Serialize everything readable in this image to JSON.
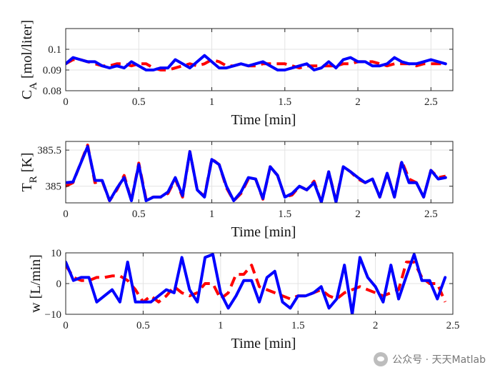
{
  "watermark": {
    "text": "公众号 · 天天Matlab",
    "icon": "wechat-icon"
  },
  "colors": {
    "actual": "#0000ff",
    "reference": "#ff0000",
    "axis": "#262626",
    "grid": "#e3e3e3"
  },
  "chart_data": [
    {
      "type": "line",
      "xlabel": "Time [min]",
      "ylabel": "C",
      "ylabel_subscript": "A",
      "ylabel_suffix": " [mol/liter]",
      "xlim": [
        0,
        2.65
      ],
      "ylim": [
        0.08,
        0.11
      ],
      "xticks": [
        0,
        0.5,
        1,
        1.5,
        2,
        2.5
      ],
      "xtick_labels": [
        "0",
        "0.5",
        "1",
        "1.5",
        "2",
        "2.5"
      ],
      "yticks": [
        0.08,
        0.09,
        0.1
      ],
      "ytick_labels": [
        "0.08",
        "0.09",
        "0.1"
      ],
      "grid": true,
      "series": [
        {
          "style": "dashed",
          "color": "#ff0000",
          "x": [
            0,
            0.05,
            0.1,
            0.15,
            0.2,
            0.25,
            0.3,
            0.35,
            0.4,
            0.45,
            0.5,
            0.55,
            0.6,
            0.65,
            0.7,
            0.75,
            0.8,
            0.85,
            0.9,
            0.95,
            1.0,
            1.05,
            1.1,
            1.15,
            1.2,
            1.25,
            1.3,
            1.35,
            1.4,
            1.45,
            1.5,
            1.55,
            1.6,
            1.65,
            1.7,
            1.75,
            1.8,
            1.85,
            1.9,
            1.95,
            2.0,
            2.05,
            2.1,
            2.15,
            2.2,
            2.25,
            2.3,
            2.35,
            2.4,
            2.45,
            2.5,
            2.55,
            2.6
          ],
          "y": [
            0.093,
            0.095,
            0.095,
            0.094,
            0.093,
            0.092,
            0.092,
            0.093,
            0.093,
            0.092,
            0.093,
            0.093,
            0.091,
            0.09,
            0.09,
            0.091,
            0.092,
            0.093,
            0.092,
            0.093,
            0.095,
            0.094,
            0.092,
            0.092,
            0.093,
            0.092,
            0.092,
            0.093,
            0.093,
            0.093,
            0.093,
            0.092,
            0.091,
            0.092,
            0.092,
            0.092,
            0.092,
            0.092,
            0.093,
            0.093,
            0.094,
            0.094,
            0.094,
            0.093,
            0.092,
            0.093,
            0.093,
            0.093,
            0.092,
            0.093,
            0.093,
            0.093,
            0.093
          ]
        },
        {
          "style": "solid",
          "color": "#0000ff",
          "x": [
            0,
            0.05,
            0.1,
            0.15,
            0.2,
            0.25,
            0.3,
            0.35,
            0.4,
            0.45,
            0.5,
            0.55,
            0.6,
            0.65,
            0.7,
            0.75,
            0.8,
            0.85,
            0.9,
            0.95,
            1.0,
            1.05,
            1.1,
            1.15,
            1.2,
            1.25,
            1.3,
            1.35,
            1.4,
            1.45,
            1.5,
            1.55,
            1.6,
            1.65,
            1.7,
            1.75,
            1.8,
            1.85,
            1.9,
            1.95,
            2.0,
            2.05,
            2.1,
            2.15,
            2.2,
            2.25,
            2.3,
            2.35,
            2.4,
            2.45,
            2.5,
            2.55,
            2.6
          ],
          "y": [
            0.093,
            0.096,
            0.095,
            0.094,
            0.094,
            0.092,
            0.091,
            0.092,
            0.091,
            0.094,
            0.092,
            0.09,
            0.09,
            0.091,
            0.091,
            0.095,
            0.093,
            0.091,
            0.094,
            0.097,
            0.094,
            0.091,
            0.091,
            0.092,
            0.093,
            0.092,
            0.093,
            0.094,
            0.092,
            0.09,
            0.09,
            0.091,
            0.092,
            0.093,
            0.09,
            0.091,
            0.094,
            0.091,
            0.095,
            0.096,
            0.094,
            0.094,
            0.092,
            0.092,
            0.093,
            0.096,
            0.094,
            0.093,
            0.093,
            0.094,
            0.095,
            0.094,
            0.093
          ]
        }
      ]
    },
    {
      "type": "line",
      "xlabel": "Time [min]",
      "ylabel": "T",
      "ylabel_subscript": "R",
      "ylabel_suffix": " [K]",
      "xlim": [
        0,
        2.65
      ],
      "ylim": [
        384.77,
        385.62
      ],
      "xticks": [
        0,
        0.5,
        1,
        1.5,
        2,
        2.5
      ],
      "xtick_labels": [
        "0",
        "0.5",
        "1",
        "1.5",
        "2",
        "2.5"
      ],
      "yticks": [
        385,
        385.5
      ],
      "ytick_labels": [
        "385",
        "385.5"
      ],
      "grid": true,
      "series": [
        {
          "style": "dashed",
          "color": "#ff0000",
          "x": [
            0,
            0.05,
            0.15,
            0.2,
            0.25,
            0.3,
            0.35,
            0.4,
            0.45,
            0.5,
            0.55,
            0.6,
            0.65,
            0.7,
            0.75,
            0.8,
            0.85,
            0.9,
            0.95,
            1.0,
            1.05,
            1.1,
            1.15,
            1.2,
            1.25,
            1.3,
            1.35,
            1.4,
            1.45,
            1.5,
            1.55,
            1.6,
            1.65,
            1.7,
            1.75,
            1.8,
            1.85,
            1.9,
            1.95,
            2.0,
            2.05,
            2.1,
            2.15,
            2.2,
            2.25,
            2.3,
            2.35,
            2.4,
            2.45,
            2.5,
            2.55,
            2.6
          ],
          "y": [
            385.0,
            385.05,
            385.57,
            385.05,
            385.07,
            384.8,
            384.95,
            385.15,
            384.8,
            385.32,
            384.82,
            384.85,
            384.85,
            384.9,
            385.1,
            384.85,
            385.48,
            384.95,
            384.86,
            385.38,
            385.3,
            384.98,
            384.8,
            384.9,
            385.1,
            385.1,
            384.82,
            385.27,
            385.15,
            384.85,
            384.88,
            385.0,
            384.95,
            385.07,
            384.78,
            385.2,
            384.8,
            385.27,
            385.2,
            385.1,
            385.05,
            385.1,
            384.85,
            385.18,
            384.85,
            385.35,
            385.1,
            385.05,
            384.85,
            385.22,
            385.12,
            385.14
          ]
        },
        {
          "style": "solid",
          "color": "#0000ff",
          "x": [
            0,
            0.05,
            0.15,
            0.2,
            0.25,
            0.3,
            0.35,
            0.4,
            0.45,
            0.5,
            0.55,
            0.6,
            0.65,
            0.7,
            0.75,
            0.8,
            0.85,
            0.9,
            0.95,
            1.0,
            1.05,
            1.1,
            1.15,
            1.2,
            1.25,
            1.3,
            1.35,
            1.4,
            1.45,
            1.5,
            1.55,
            1.6,
            1.65,
            1.7,
            1.75,
            1.8,
            1.85,
            1.9,
            1.95,
            2.0,
            2.05,
            2.1,
            2.15,
            2.2,
            2.25,
            2.3,
            2.35,
            2.4,
            2.45,
            2.5,
            2.55,
            2.6
          ],
          "y": [
            385.05,
            385.06,
            385.55,
            385.08,
            385.08,
            384.8,
            384.97,
            385.12,
            384.8,
            385.3,
            384.8,
            384.85,
            384.85,
            384.92,
            385.12,
            384.87,
            385.48,
            384.95,
            384.85,
            385.37,
            385.3,
            385.0,
            384.8,
            384.92,
            385.12,
            385.1,
            384.83,
            385.27,
            385.15,
            384.85,
            384.9,
            385.0,
            384.95,
            385.05,
            384.78,
            385.2,
            384.78,
            385.27,
            385.2,
            385.12,
            385.05,
            385.1,
            384.85,
            385.18,
            384.85,
            385.33,
            385.05,
            385.05,
            384.85,
            385.22,
            385.1,
            385.12
          ]
        }
      ]
    },
    {
      "type": "line",
      "xlabel": "Time [min]",
      "ylabel": "w [L/min]",
      "xlim": [
        0,
        2.5
      ],
      "ylim": [
        -10,
        10
      ],
      "xticks": [
        0,
        0.5,
        1,
        1.5,
        2,
        2.5
      ],
      "xtick_labels": [
        "0",
        "0.5",
        "1",
        "1.5",
        "2",
        "2.5"
      ],
      "yticks": [
        -10,
        0,
        10
      ],
      "ytick_labels": [
        "−10",
        "0",
        "10"
      ],
      "grid": true,
      "series": [
        {
          "style": "dashed",
          "color": "#ff0000",
          "x": [
            0,
            0.05,
            0.1,
            0.15,
            0.2,
            0.25,
            0.3,
            0.35,
            0.4,
            0.45,
            0.5,
            0.55,
            0.6,
            0.65,
            0.7,
            0.75,
            0.8,
            0.85,
            0.9,
            0.95,
            1.0,
            1.05,
            1.1,
            1.15,
            1.2,
            1.25,
            1.3,
            1.35,
            1.4,
            1.45,
            1.5,
            1.55,
            1.6,
            1.65,
            1.7,
            1.75,
            1.8,
            1.85,
            1.9,
            1.95,
            2.0,
            2.05,
            2.1,
            2.15,
            2.2,
            2.25,
            2.3,
            2.35,
            2.4,
            2.45
          ],
          "y": [
            6,
            2,
            1,
            1,
            2,
            2,
            2.5,
            2.5,
            1,
            -2,
            -6,
            -4,
            -6,
            -4,
            -1,
            -3,
            -4,
            -3,
            0,
            0,
            -5,
            -3,
            3,
            3,
            6,
            -1,
            -2,
            -3,
            -4,
            -5,
            -4,
            -4,
            -3,
            -2,
            -4,
            -5,
            -3,
            -2,
            -1,
            -2,
            -3,
            -4,
            -3,
            -2,
            7,
            7,
            2,
            0,
            0,
            -6
          ]
        },
        {
          "style": "solid",
          "color": "#0000ff",
          "x": [
            0,
            0.05,
            0.1,
            0.15,
            0.2,
            0.25,
            0.3,
            0.35,
            0.4,
            0.45,
            0.5,
            0.55,
            0.6,
            0.65,
            0.7,
            0.75,
            0.8,
            0.85,
            0.9,
            0.95,
            1.0,
            1.05,
            1.1,
            1.15,
            1.2,
            1.25,
            1.3,
            1.35,
            1.4,
            1.45,
            1.5,
            1.55,
            1.6,
            1.65,
            1.7,
            1.75,
            1.8,
            1.85,
            1.9,
            1.95,
            2.0,
            2.05,
            2.1,
            2.15,
            2.2,
            2.25,
            2.3,
            2.35,
            2.4,
            2.45
          ],
          "y": [
            7,
            1,
            2,
            2,
            -6,
            -4,
            -2,
            -6,
            7,
            -6,
            -6,
            -6,
            -4,
            -2,
            -3,
            8.5,
            -2,
            -6,
            8.5,
            9.5,
            -3,
            -8,
            -4,
            1,
            1,
            -6,
            2,
            4,
            -6,
            -8,
            -4,
            -4,
            -3,
            -1,
            -8,
            -5,
            6,
            -10,
            8.5,
            2,
            -1,
            -6,
            6,
            -5,
            2.5,
            9.5,
            1,
            1,
            -5,
            2
          ]
        }
      ]
    }
  ]
}
